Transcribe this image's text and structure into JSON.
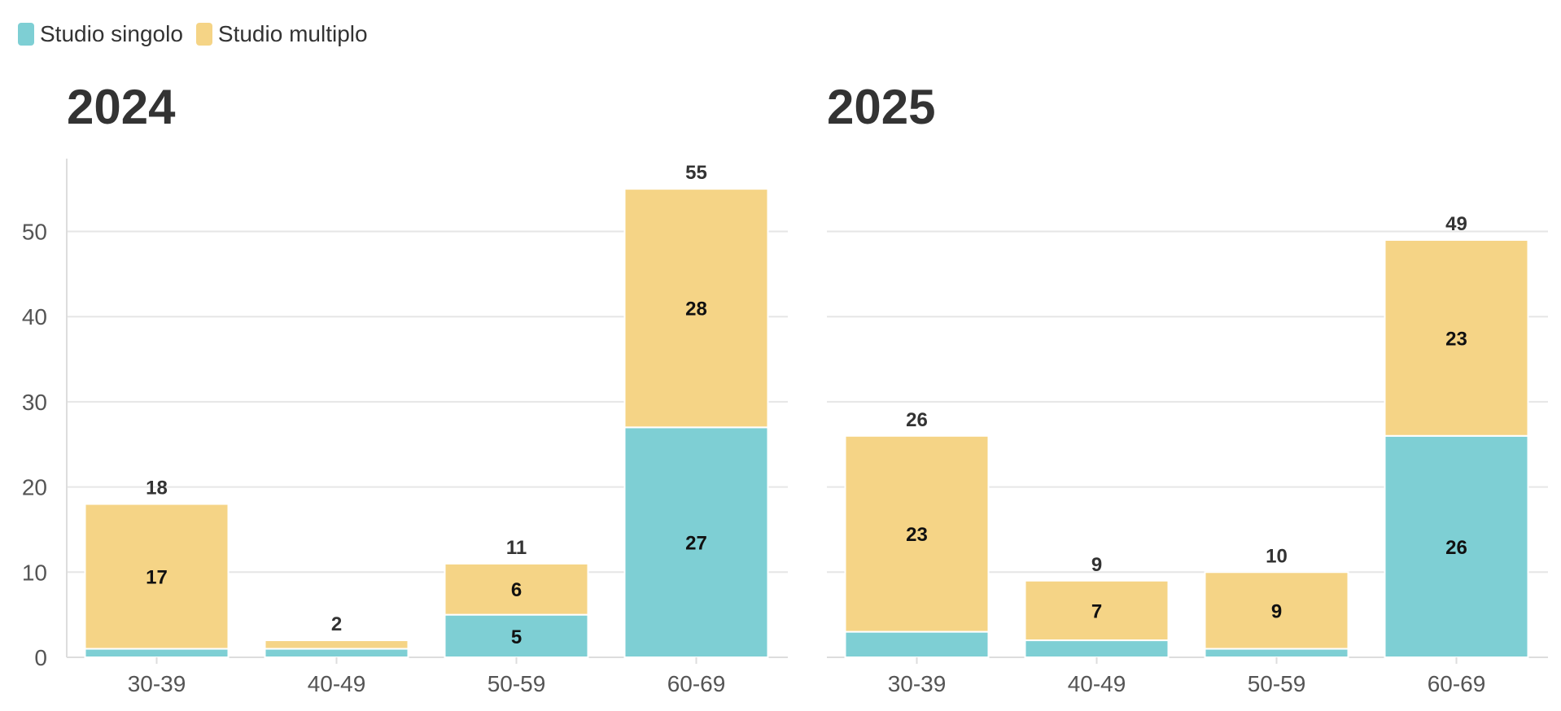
{
  "legend": [
    {
      "label": "Studio singolo",
      "color": "#7ecfd4"
    },
    {
      "label": "Studio multiplo",
      "color": "#f5d486"
    }
  ],
  "chart_data": [
    {
      "type": "bar",
      "stacked": true,
      "title": "2024",
      "categories": [
        "30-39",
        "40-49",
        "50-59",
        "60-69"
      ],
      "series": [
        {
          "name": "Studio singolo",
          "values": [
            1,
            1,
            5,
            27
          ],
          "color": "#7ecfd4"
        },
        {
          "name": "Studio multiplo",
          "values": [
            17,
            1,
            6,
            28
          ],
          "color": "#f5d486"
        }
      ],
      "totals": [
        18,
        2,
        11,
        55
      ],
      "yticks": [
        0,
        10,
        20,
        30,
        40,
        50
      ],
      "ylim": [
        0,
        58
      ],
      "grid": true
    },
    {
      "type": "bar",
      "stacked": true,
      "title": "2025",
      "categories": [
        "30-39",
        "40-49",
        "50-59",
        "60-69"
      ],
      "series": [
        {
          "name": "Studio singolo",
          "values": [
            3,
            2,
            1,
            26
          ],
          "color": "#7ecfd4"
        },
        {
          "name": "Studio multiplo",
          "values": [
            23,
            7,
            9,
            23
          ],
          "color": "#f5d486"
        }
      ],
      "totals": [
        26,
        9,
        10,
        49
      ],
      "yticks": [
        0,
        10,
        20,
        30,
        40,
        50
      ],
      "ylim": [
        0,
        58
      ],
      "grid": true
    }
  ]
}
